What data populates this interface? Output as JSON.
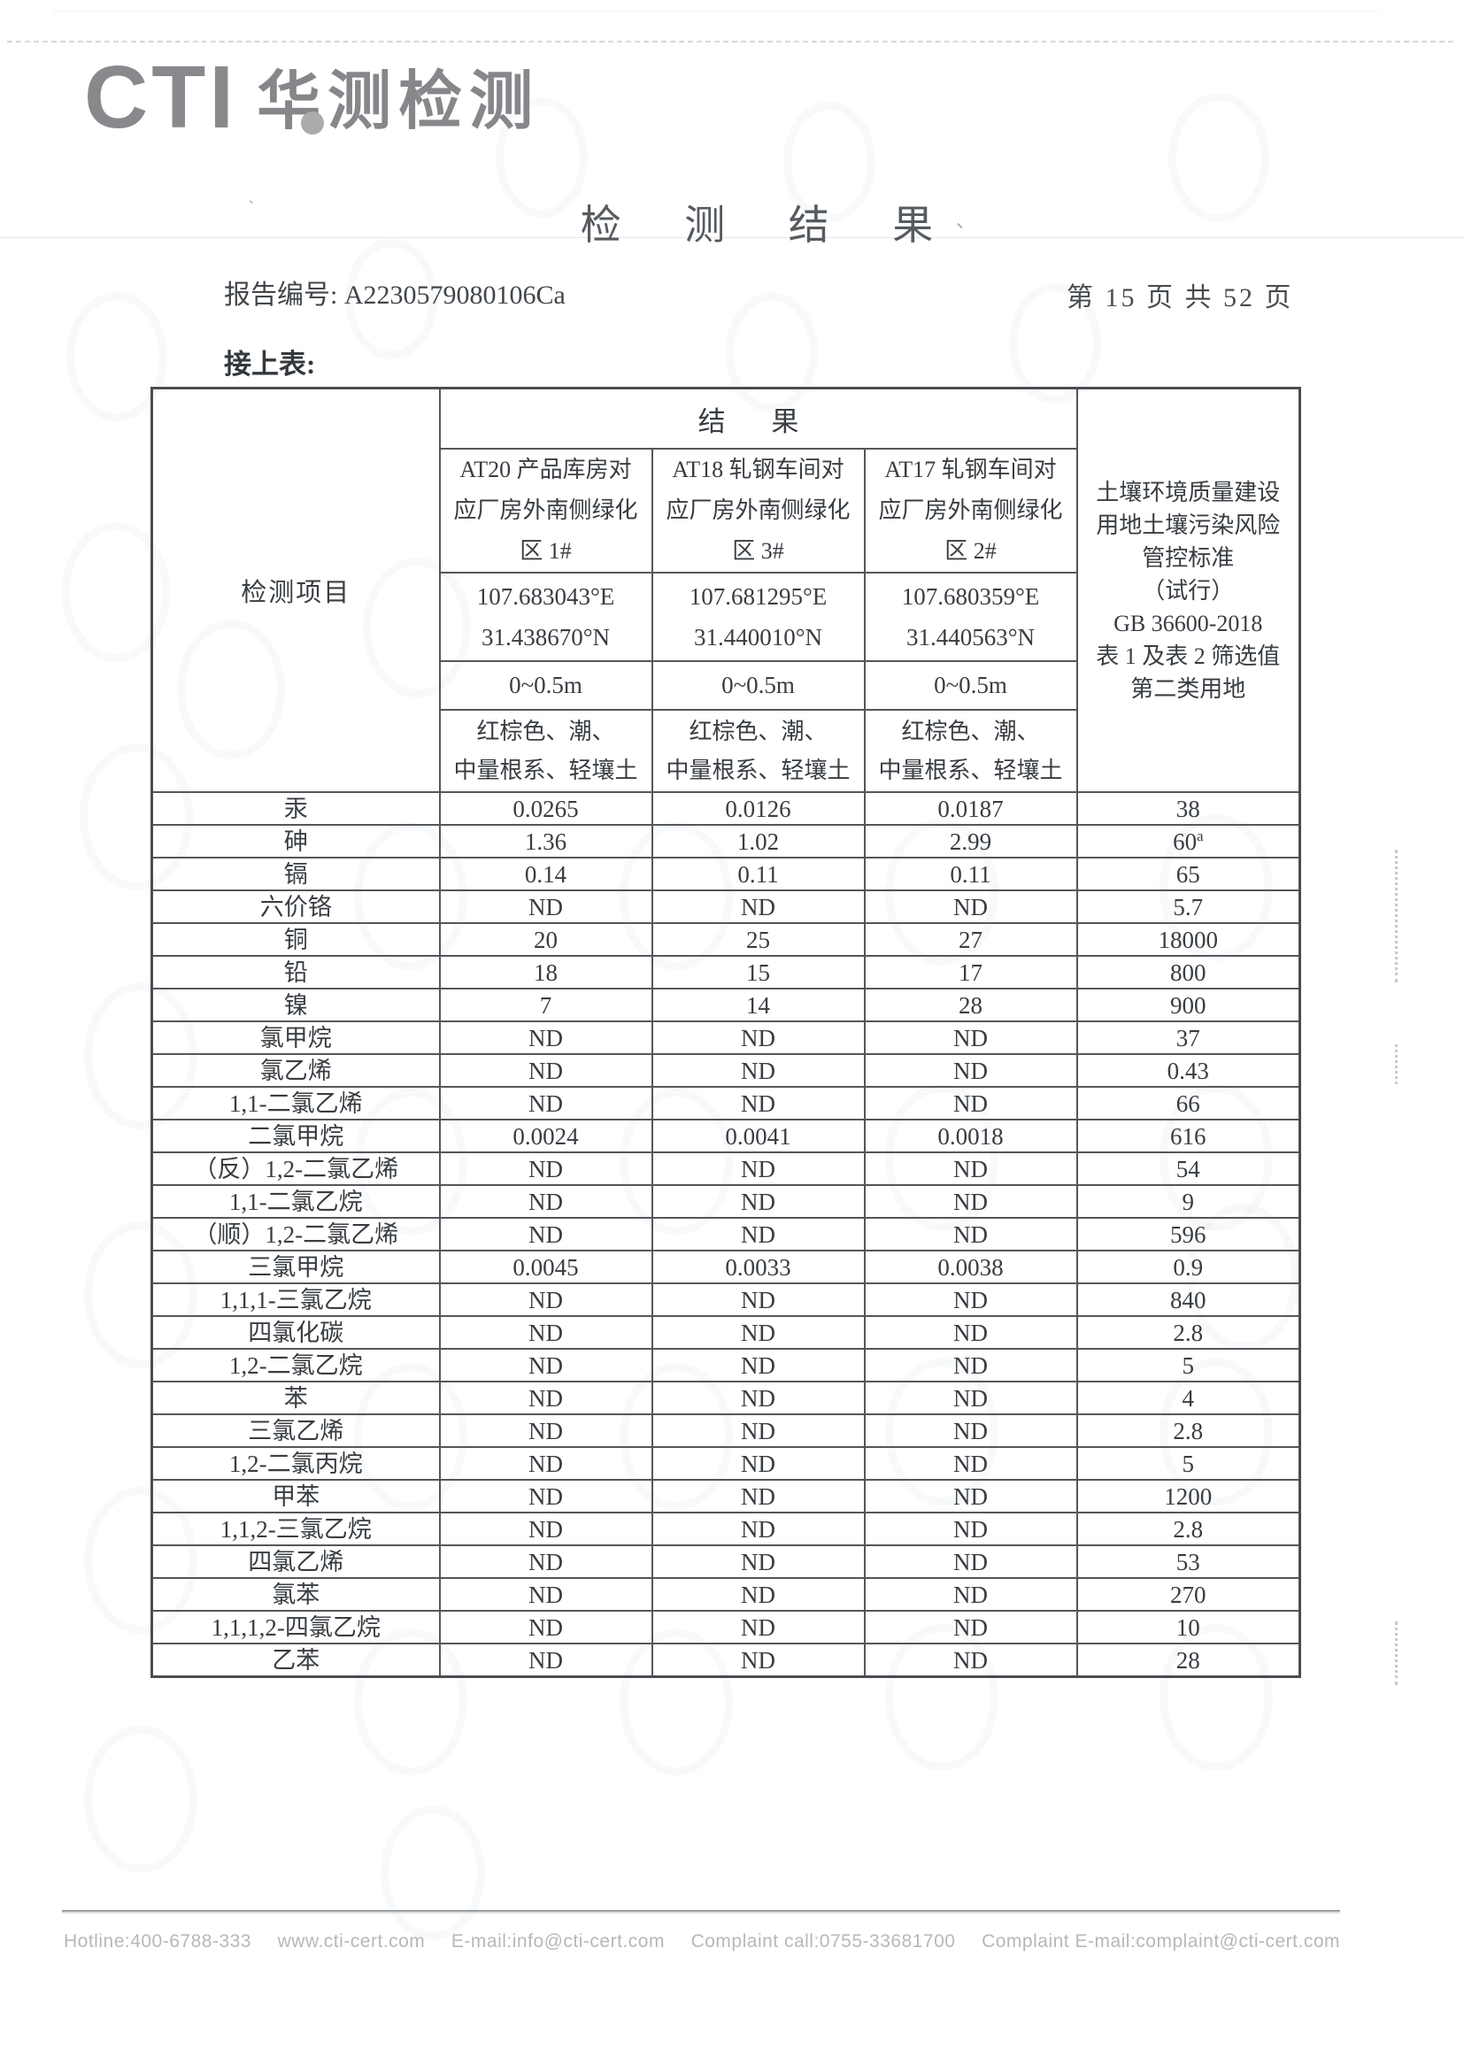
{
  "header": {
    "logo_text": "CTI",
    "logo_cn": "华测检测",
    "title": "检 测 结 果",
    "report_no": "报告编号: A2230579080106Ca",
    "page_info": "第 15 页 共 52 页",
    "continued_label": "接上表:"
  },
  "table": {
    "item_header": "检测项目",
    "results_header": "结 果",
    "standard_header": "土壤环境质量建设\n用地土壤污染风险\n管控标准\n（试行）\nGB 36600-2018\n表 1 及表 2 筛选值\n第二类用地",
    "sites": [
      {
        "name": "AT20 产品库房对\n应厂房外南侧绿化\n区 1#",
        "coords": "107.683043°E\n31.438670°N",
        "depth": "0~0.5m",
        "soil": "红棕色、潮、\n中量根系、轻壤土"
      },
      {
        "name": "AT18 轧钢车间对\n应厂房外南侧绿化\n区 3#",
        "coords": "107.681295°E\n31.440010°N",
        "depth": "0~0.5m",
        "soil": "红棕色、潮、\n中量根系、轻壤土"
      },
      {
        "name": "AT17 轧钢车间对\n应厂房外南侧绿化\n区 2#",
        "coords": "107.680359°E\n31.440563°N",
        "depth": "0~0.5m",
        "soil": "红棕色、潮、\n中量根系、轻壤土"
      }
    ],
    "rows": [
      {
        "item": "汞",
        "v1": "0.0265",
        "v2": "0.0126",
        "v3": "0.0187",
        "std": "38"
      },
      {
        "item": "砷",
        "v1": "1.36",
        "v2": "1.02",
        "v3": "2.99",
        "std": "60",
        "std_sup": "a"
      },
      {
        "item": "镉",
        "v1": "0.14",
        "v2": "0.11",
        "v3": "0.11",
        "std": "65"
      },
      {
        "item": "六价铬",
        "v1": "ND",
        "v2": "ND",
        "v3": "ND",
        "std": "5.7"
      },
      {
        "item": "铜",
        "v1": "20",
        "v2": "25",
        "v3": "27",
        "std": "18000"
      },
      {
        "item": "铅",
        "v1": "18",
        "v2": "15",
        "v3": "17",
        "std": "800"
      },
      {
        "item": "镍",
        "v1": "7",
        "v2": "14",
        "v3": "28",
        "std": "900"
      },
      {
        "item": "氯甲烷",
        "v1": "ND",
        "v2": "ND",
        "v3": "ND",
        "std": "37"
      },
      {
        "item": "氯乙烯",
        "v1": "ND",
        "v2": "ND",
        "v3": "ND",
        "std": "0.43"
      },
      {
        "item": "1,1-二氯乙烯",
        "v1": "ND",
        "v2": "ND",
        "v3": "ND",
        "std": "66"
      },
      {
        "item": "二氯甲烷",
        "v1": "0.0024",
        "v2": "0.0041",
        "v3": "0.0018",
        "std": "616"
      },
      {
        "item": "（反）1,2-二氯乙烯",
        "v1": "ND",
        "v2": "ND",
        "v3": "ND",
        "std": "54"
      },
      {
        "item": "1,1-二氯乙烷",
        "v1": "ND",
        "v2": "ND",
        "v3": "ND",
        "std": "9"
      },
      {
        "item": "（顺）1,2-二氯乙烯",
        "v1": "ND",
        "v2": "ND",
        "v3": "ND",
        "std": "596"
      },
      {
        "item": "三氯甲烷",
        "v1": "0.0045",
        "v2": "0.0033",
        "v3": "0.0038",
        "std": "0.9"
      },
      {
        "item": "1,1,1-三氯乙烷",
        "v1": "ND",
        "v2": "ND",
        "v3": "ND",
        "std": "840"
      },
      {
        "item": "四氯化碳",
        "v1": "ND",
        "v2": "ND",
        "v3": "ND",
        "std": "2.8"
      },
      {
        "item": "1,2-二氯乙烷",
        "v1": "ND",
        "v2": "ND",
        "v3": "ND",
        "std": "5"
      },
      {
        "item": "苯",
        "v1": "ND",
        "v2": "ND",
        "v3": "ND",
        "std": "4"
      },
      {
        "item": "三氯乙烯",
        "v1": "ND",
        "v2": "ND",
        "v3": "ND",
        "std": "2.8"
      },
      {
        "item": "1,2-二氯丙烷",
        "v1": "ND",
        "v2": "ND",
        "v3": "ND",
        "std": "5"
      },
      {
        "item": "甲苯",
        "v1": "ND",
        "v2": "ND",
        "v3": "ND",
        "std": "1200"
      },
      {
        "item": "1,1,2-三氯乙烷",
        "v1": "ND",
        "v2": "ND",
        "v3": "ND",
        "std": "2.8"
      },
      {
        "item": "四氯乙烯",
        "v1": "ND",
        "v2": "ND",
        "v3": "ND",
        "std": "53"
      },
      {
        "item": "氯苯",
        "v1": "ND",
        "v2": "ND",
        "v3": "ND",
        "std": "270"
      },
      {
        "item": "1,1,1,2-四氯乙烷",
        "v1": "ND",
        "v2": "ND",
        "v3": "ND",
        "std": "10"
      },
      {
        "item": "乙苯",
        "v1": "ND",
        "v2": "ND",
        "v3": "ND",
        "std": "28"
      }
    ]
  },
  "footer": {
    "hotline": "Hotline:400-6788-333",
    "website": "www.cti-cert.com",
    "email": "E-mail:info@cti-cert.com",
    "complaint_call": "Complaint call:0755-33681700",
    "complaint_email": "Complaint E-mail:complaint@cti-cert.com"
  }
}
